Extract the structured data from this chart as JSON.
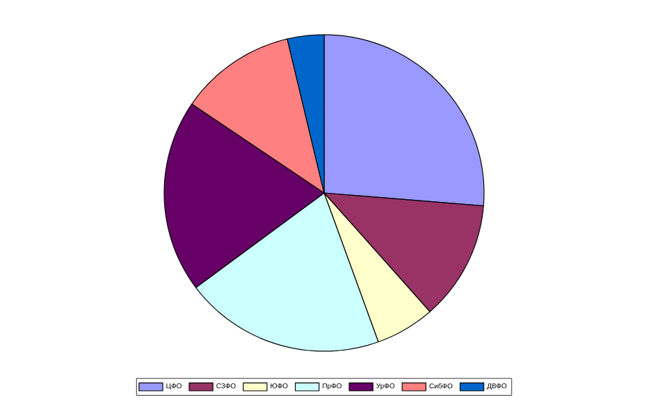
{
  "chart_data": {
    "type": "pie",
    "categories": [
      "ЦФО",
      "СЗФО",
      "ЮФО",
      "ПрФО",
      "УрФО",
      "СибФО",
      "ДВФО"
    ],
    "values": [
      26.3,
      12.2,
      6.0,
      20.3,
      19.7,
      11.8,
      3.7
    ],
    "colors": [
      "#9999ff",
      "#993366",
      "#ffffcc",
      "#ccffff",
      "#660066",
      "#ff8080",
      "#0066cc"
    ],
    "legend": "bottom"
  }
}
